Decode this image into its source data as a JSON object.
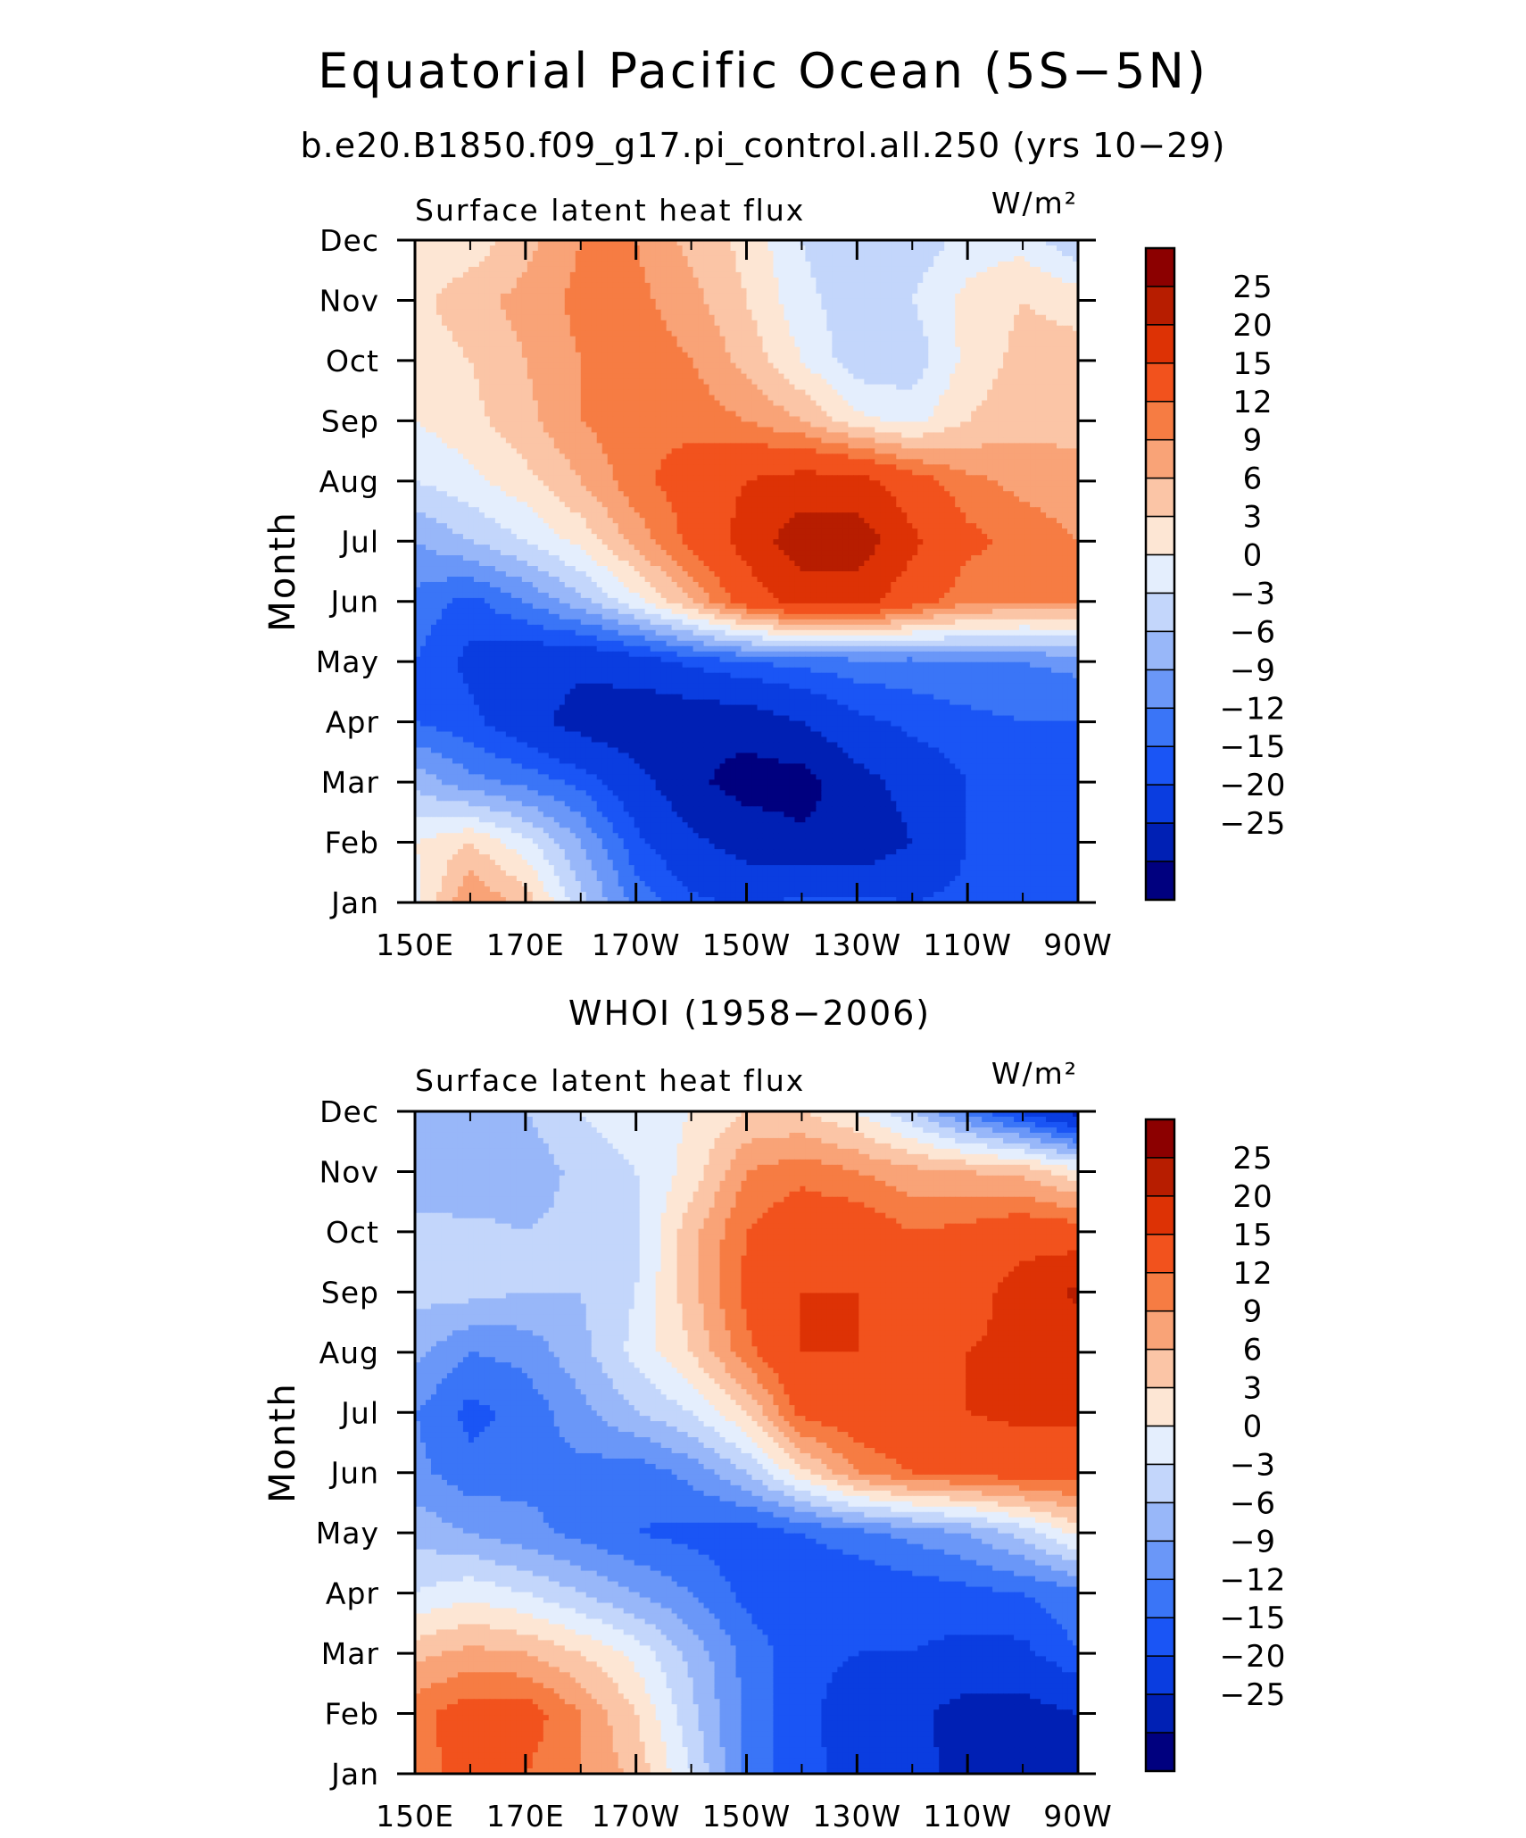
{
  "figure": {
    "title": "Equatorial Pacific Ocean (5S−5N)",
    "subtitle": "b.e20.B1850.f09_g17.pi_control.all.250 (yrs 10−29)"
  },
  "chart_data": [
    {
      "type": "heatmap",
      "title": "",
      "left_title": "Surface latent heat flux",
      "right_title": "W/m²",
      "ylabel": "Month",
      "xlabel": "",
      "x_ticks": [
        "150E",
        "170E",
        "170W",
        "150W",
        "130W",
        "110W",
        "90W"
      ],
      "x_range_deg_east": [
        150,
        270
      ],
      "y_ticks": [
        "Jan",
        "Feb",
        "Mar",
        "Apr",
        "May",
        "Jun",
        "Jul",
        "Aug",
        "Sep",
        "Oct",
        "Nov",
        "Dec"
      ],
      "colorbar_labels": [
        "25",
        "20",
        "15",
        "12",
        "9",
        "6",
        "3",
        "0",
        "−3",
        "−6",
        "−9",
        "−12",
        "−15",
        "−20",
        "−25"
      ],
      "colorbar_levels": [
        -25,
        -20,
        -15,
        -12,
        -9,
        -6,
        -3,
        0,
        3,
        6,
        9,
        12,
        15,
        20,
        25
      ],
      "colors": [
        "#00007f",
        "#0020b4",
        "#0a3de0",
        "#1a55f5",
        "#3a75f7",
        "#6a97f8",
        "#98b7f9",
        "#c3d6fb",
        "#e4eefd",
        "#fde6d4",
        "#fbc5a6",
        "#f9a377",
        "#f67c43",
        "#f2521d",
        "#dd3205",
        "#b71d00",
        "#8c0000"
      ],
      "lons": [
        150,
        160,
        170,
        180,
        190,
        200,
        210,
        220,
        230,
        240,
        250,
        260,
        270
      ],
      "z": [
        [
          2,
          12,
          8,
          -2,
          -10,
          -14,
          -16,
          -14,
          -14,
          -15,
          -14,
          -13,
          -12
        ],
        [
          3,
          6,
          1,
          -6,
          -14,
          -19,
          -22,
          -24,
          -24,
          -20,
          -15,
          -14,
          -12
        ],
        [
          -4,
          -8,
          -10,
          -13,
          -18,
          -24,
          -27,
          -27,
          -22,
          -18,
          -15,
          -14,
          -12
        ],
        [
          -12,
          -14,
          -18,
          -22,
          -24,
          -24,
          -23,
          -20,
          -16,
          -14,
          -13,
          -12,
          -12
        ],
        [
          -12,
          -16,
          -18,
          -19,
          -17,
          -14,
          -12,
          -11,
          -10,
          -10,
          -9,
          -9,
          -8
        ],
        [
          -10,
          -13,
          -9,
          -4,
          2,
          9,
          17,
          22,
          22,
          17,
          13,
          12,
          12
        ],
        [
          -6,
          -3,
          0,
          4,
          10,
          16,
          22,
          28,
          28,
          21,
          16,
          14,
          12
        ],
        [
          0,
          2,
          5,
          9,
          14,
          17,
          20,
          22,
          22,
          17,
          13,
          11,
          10
        ],
        [
          3,
          5,
          8,
          12,
          14,
          14,
          12,
          9,
          4,
          2,
          6,
          8,
          8
        ],
        [
          4,
          6,
          9,
          12,
          14,
          12,
          8,
          3,
          -2,
          -2,
          4,
          7,
          7
        ],
        [
          5,
          8,
          10,
          13,
          13,
          10,
          6,
          1,
          -2,
          0,
          4,
          6,
          5
        ],
        [
          3,
          4,
          8,
          12,
          12,
          8,
          5,
          0,
          -3,
          -2,
          1,
          2,
          -3
        ]
      ]
    },
    {
      "type": "heatmap",
      "title": "WHOI (1958−2006)",
      "left_title": "Surface latent heat flux",
      "right_title": "W/m²",
      "ylabel": "Month",
      "xlabel": "",
      "x_ticks": [
        "150E",
        "170E",
        "170W",
        "150W",
        "130W",
        "110W",
        "90W"
      ],
      "x_range_deg_east": [
        150,
        270
      ],
      "y_ticks": [
        "Jan",
        "Feb",
        "Mar",
        "Apr",
        "May",
        "Jun",
        "Jul",
        "Aug",
        "Sep",
        "Oct",
        "Nov",
        "Dec"
      ],
      "colorbar_labels": [
        "25",
        "20",
        "15",
        "12",
        "9",
        "6",
        "3",
        "0",
        "−3",
        "−6",
        "−9",
        "−12",
        "−15",
        "−20",
        "−25"
      ],
      "colorbar_levels": [
        -25,
        -20,
        -15,
        -12,
        -9,
        -6,
        -3,
        0,
        3,
        6,
        9,
        12,
        15,
        20,
        25
      ],
      "colors": [
        "#00007f",
        "#0020b4",
        "#0a3de0",
        "#1a55f5",
        "#3a75f7",
        "#6a97f8",
        "#98b7f9",
        "#c3d6fb",
        "#e4eefd",
        "#fde6d4",
        "#fbc5a6",
        "#f9a377",
        "#f67c43",
        "#f2521d",
        "#dd3205",
        "#b71d00",
        "#8c0000"
      ],
      "lons": [
        150,
        160,
        170,
        180,
        190,
        200,
        210,
        220,
        230,
        240,
        250,
        260,
        270
      ],
      "z": [
        [
          13,
          17,
          15,
          12,
          8,
          0,
          -10,
          -14,
          -16,
          -18,
          -22,
          -24,
          -25
        ],
        [
          14,
          17,
          17,
          12,
          6,
          -2,
          -10,
          -14,
          -17,
          -19,
          -22,
          -22,
          -20
        ],
        [
          8,
          10,
          9,
          6,
          2,
          -4,
          -10,
          -14,
          -15,
          -15,
          -16,
          -16,
          -12
        ],
        [
          0,
          2,
          0,
          -3,
          -6,
          -9,
          -13,
          -15,
          -15,
          -14,
          -13,
          -12,
          -10
        ],
        [
          -4,
          -6,
          -8,
          -10,
          -12,
          -13,
          -14,
          -12,
          -10,
          -8,
          -6,
          -2,
          4
        ],
        [
          -8,
          -11,
          -10,
          -10,
          -11,
          -8,
          -3,
          5,
          12,
          15,
          16,
          17,
          17
        ],
        [
          -9,
          -13,
          -11,
          -7,
          -3,
          0,
          6,
          16,
          18,
          20,
          20,
          21,
          21
        ],
        [
          -5,
          -9,
          -8,
          -4,
          1,
          6,
          14,
          20,
          20,
          18,
          20,
          21,
          21
        ],
        [
          -2,
          -2,
          -3,
          -3,
          0,
          8,
          16,
          20,
          20,
          16,
          18,
          22,
          26
        ],
        [
          -2,
          -2,
          -3,
          -2,
          -1,
          8,
          15,
          18,
          18,
          15,
          16,
          18,
          17
        ],
        [
          -5,
          -6,
          -5,
          -2,
          0,
          4,
          12,
          14,
          12,
          10,
          9,
          8,
          4
        ],
        [
          -3,
          -4,
          -3,
          0,
          2,
          3,
          6,
          6,
          3,
          -3,
          -10,
          -16,
          -22
        ]
      ]
    }
  ]
}
